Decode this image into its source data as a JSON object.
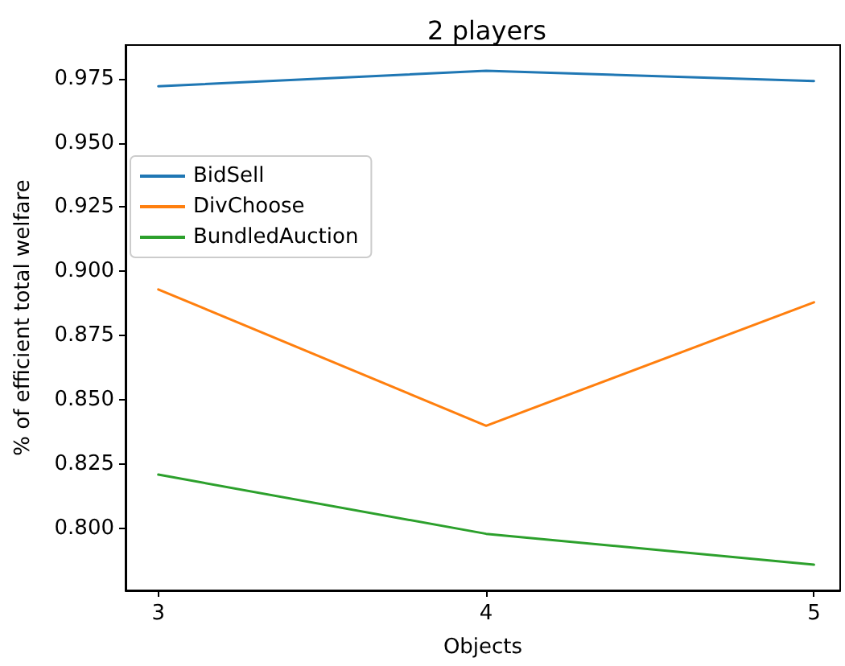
{
  "chart_data": {
    "type": "line",
    "title": "2 players",
    "xlabel": "Objects",
    "ylabel": "% of efficient total welfare",
    "x": [
      3,
      4,
      5
    ],
    "series": [
      {
        "name": "BidSell",
        "color": "#1f77b4",
        "values": [
          0.972,
          0.978,
          0.974
        ]
      },
      {
        "name": "DivChoose",
        "color": "#ff7f0e",
        "values": [
          0.893,
          0.84,
          0.888
        ]
      },
      {
        "name": "BundledAuction",
        "color": "#2ca02c",
        "values": [
          0.821,
          0.798,
          0.786
        ]
      }
    ],
    "xlim": [
      2.9,
      5.08
    ],
    "xticks": [
      3,
      4,
      5
    ],
    "ylim": [
      0.776,
      0.988
    ],
    "yticks": [
      {
        "value": 0.8,
        "label": "0.800"
      },
      0.825,
      {
        "value": 0.85,
        "label": "0.850"
      },
      0.875,
      {
        "value": 0.9,
        "label": "0.900"
      },
      0.925,
      {
        "value": 0.95,
        "label": "0.950"
      },
      0.975
    ],
    "grid": false,
    "legend": "left"
  }
}
